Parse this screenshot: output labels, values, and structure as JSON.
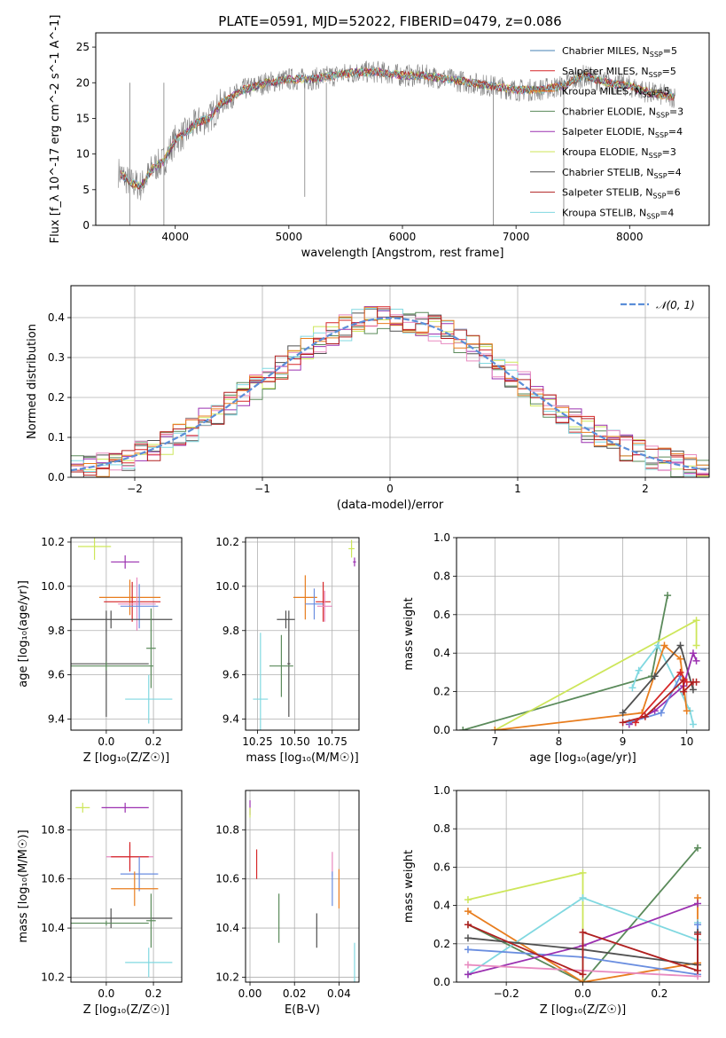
{
  "title": "PLATE=0591, MJD=52022, FIBERID=0479, z=0.086",
  "colors": {
    "chabrier_miles": "#4682b4",
    "salpeter_miles": "#d62728",
    "kroupa_miles": "#e87d1e",
    "chabrier_elodie": "#5a8a5a",
    "salpeter_elodie": "#9b30b0",
    "kroupa_elodie": "#cde65a",
    "chabrier_stelib": "#505050",
    "salpeter_stelib": "#b02020",
    "kroupa_stelib": "#80d8e0",
    "pink": "#e88ac0",
    "blue": "#6a8ee0",
    "data_gray": "#7f7f7f",
    "normal_curve": "#5b8ed8",
    "grid": "#b0b0b0"
  },
  "chart_data": [
    {
      "id": "spectrum",
      "type": "line",
      "title": "PLATE=0591, MJD=52022, FIBERID=0479, z=0.086",
      "xlabel": "wavelength [Angstrom, rest frame]",
      "ylabel": "Flux [f_λ 10^-17 erg cm^-2 s^-1 A^-1]",
      "xlim": [
        3300,
        8700
      ],
      "ylim": [
        0,
        27
      ],
      "xticks": [
        "4000",
        "5000",
        "6000",
        "7000",
        "8000"
      ],
      "yticks": [
        "0",
        "5",
        "10",
        "15",
        "20",
        "25"
      ],
      "legend_position": "right",
      "legend": [
        {
          "name": "Chabrier MILES, N_SSP=5",
          "text": "Chabrier MILES, N",
          "sub": "SSP",
          "tail": "=5",
          "color": "chabrier_miles"
        },
        {
          "name": "Salpeter MILES, N_SSP=5",
          "text": "Salpeter MILES, N",
          "sub": "SSP",
          "tail": "=5",
          "color": "salpeter_miles"
        },
        {
          "name": "Kroupa MILES, N_SSP=5",
          "text": "Kroupa MILES, N",
          "sub": "SSP",
          "tail": "=5",
          "color": "kroupa_miles"
        },
        {
          "name": "Chabrier ELODIE, N_SSP=3",
          "text": "Chabrier ELODIE, N",
          "sub": "SSP",
          "tail": "=3",
          "color": "chabrier_elodie"
        },
        {
          "name": "Salpeter ELODIE, N_SSP=4",
          "text": "Salpeter ELODIE, N",
          "sub": "SSP",
          "tail": "=4",
          "color": "salpeter_elodie"
        },
        {
          "name": "Kroupa ELODIE, N_SSP=3",
          "text": "Kroupa ELODIE, N",
          "sub": "SSP",
          "tail": "=3",
          "color": "kroupa_elodie"
        },
        {
          "name": "Chabrier STELIB, N_SSP=4",
          "text": "Chabrier STELIB, N",
          "sub": "SSP",
          "tail": "=4",
          "color": "chabrier_stelib"
        },
        {
          "name": "Salpeter STELIB, N_SSP=6",
          "text": "Salpeter STELIB, N",
          "sub": "SSP",
          "tail": "=6",
          "color": "salpeter_stelib"
        },
        {
          "name": "Kroupa STELIB, N_SSP=4",
          "text": "Kroupa STELIB, N",
          "sub": "SSP",
          "tail": "=4",
          "color": "kroupa_stelib"
        }
      ],
      "continuum_knots": [
        [
          3500,
          7.5
        ],
        [
          3600,
          6
        ],
        [
          3700,
          5.5
        ],
        [
          3800,
          8
        ],
        [
          3900,
          9
        ],
        [
          4000,
          12
        ],
        [
          4100,
          13
        ],
        [
          4200,
          14.5
        ],
        [
          4300,
          15
        ],
        [
          4400,
          17
        ],
        [
          4500,
          18
        ],
        [
          4600,
          19
        ],
        [
          4800,
          20
        ],
        [
          5000,
          20.5
        ],
        [
          5200,
          20.5
        ],
        [
          5400,
          21
        ],
        [
          5600,
          21.5
        ],
        [
          5800,
          21.5
        ],
        [
          6000,
          21
        ],
        [
          6200,
          21
        ],
        [
          6400,
          20.5
        ],
        [
          6600,
          20
        ],
        [
          6800,
          19.5
        ],
        [
          7000,
          19
        ],
        [
          7200,
          19
        ],
        [
          7400,
          19.5
        ],
        [
          7600,
          21
        ],
        [
          7800,
          20
        ],
        [
          8000,
          19.5
        ],
        [
          8200,
          18.5
        ],
        [
          8400,
          18
        ]
      ]
    },
    {
      "id": "residuals",
      "type": "histogram",
      "xlabel": "(data-model)/error",
      "ylabel": "Normed distribution",
      "xlim": [
        -2.5,
        2.5
      ],
      "ylim": [
        0,
        0.48
      ],
      "xticks": [
        "−2",
        "−1",
        "0",
        "1",
        "2"
      ],
      "yticks": [
        "0.0",
        "0.1",
        "0.2",
        "0.3",
        "0.4"
      ],
      "legend": "𝒩(0, 1)",
      "legend_position": "top-right"
    },
    {
      "id": "age_vs_Z",
      "type": "scatter",
      "xlabel": "Z [log₁₀(Z/Z☉)]",
      "ylabel": "age  [log₁₀(age/yr)]",
      "xlim": [
        -0.15,
        0.32
      ],
      "ylim": [
        9.35,
        10.22
      ],
      "xticks": [
        "0.0",
        "0.2"
      ],
      "yticks": [
        "9.4",
        "9.6",
        "9.8",
        "10.0",
        "10.2"
      ],
      "points": [
        {
          "x": -0.05,
          "y": 10.18,
          "ex": 0.07,
          "ey": 0.06,
          "color": "kroupa_elodie"
        },
        {
          "x": 0.08,
          "y": 10.11,
          "ex": 0.06,
          "ey": 0.03,
          "color": "salpeter_elodie"
        },
        {
          "x": 0.1,
          "y": 9.95,
          "ex": 0.13,
          "ey": 0.08,
          "color": "kroupa_miles"
        },
        {
          "x": 0.11,
          "y": 9.93,
          "ex": 0.12,
          "ey": 0.09,
          "color": "salpeter_miles"
        },
        {
          "x": 0.13,
          "y": 9.92,
          "ex": 0.08,
          "ey": 0.12,
          "color": "pink"
        },
        {
          "x": 0.14,
          "y": 9.91,
          "ex": 0.08,
          "ey": 0.1,
          "color": "blue"
        },
        {
          "x": 0.02,
          "y": 9.85,
          "ex": 0.26,
          "ey": 0.04,
          "color": "chabrier_stelib"
        },
        {
          "x": 0.0,
          "y": 9.65,
          "ex": 0.18,
          "ey": 0.24,
          "color": "chabrier_stelib"
        },
        {
          "x": 0.19,
          "y": 9.72,
          "ex": 0.02,
          "ey": 0.18,
          "color": "chabrier_elodie"
        },
        {
          "x": 0.0,
          "y": 9.64,
          "ex": 0.2,
          "ey": 0.02,
          "color": "chabrier_elodie"
        },
        {
          "x": 0.18,
          "y": 9.49,
          "ex": 0.1,
          "ey": 0.11,
          "color": "kroupa_stelib"
        }
      ]
    },
    {
      "id": "age_vs_mass",
      "type": "scatter",
      "xlabel": "mass [log₁₀(M/M☉)]",
      "ylabel": "",
      "xlim": [
        10.17,
        10.93
      ],
      "ylim": [
        9.35,
        10.22
      ],
      "xticks": [
        "10.25",
        "10.50",
        "10.75"
      ],
      "yticks": [
        "9.4",
        "9.6",
        "9.8",
        "10.0",
        "10.2"
      ],
      "points": [
        {
          "x": 10.88,
          "y": 10.17,
          "ex": 0.02,
          "ey": 0.04,
          "color": "kroupa_elodie"
        },
        {
          "x": 10.9,
          "y": 10.11,
          "ex": 0.01,
          "ey": 0.02,
          "color": "salpeter_elodie"
        },
        {
          "x": 10.57,
          "y": 9.95,
          "ex": 0.08,
          "ey": 0.1,
          "color": "kroupa_miles"
        },
        {
          "x": 10.69,
          "y": 9.93,
          "ex": 0.05,
          "ey": 0.09,
          "color": "salpeter_miles"
        },
        {
          "x": 10.7,
          "y": 9.91,
          "ex": 0.05,
          "ey": 0.07,
          "color": "pink"
        },
        {
          "x": 10.63,
          "y": 9.92,
          "ex": 0.06,
          "ey": 0.07,
          "color": "blue"
        },
        {
          "x": 10.44,
          "y": 9.85,
          "ex": 0.06,
          "ey": 0.04,
          "color": "chabrier_stelib"
        },
        {
          "x": 10.46,
          "y": 9.65,
          "ex": 0.01,
          "ey": 0.24,
          "color": "chabrier_stelib"
        },
        {
          "x": 10.41,
          "y": 9.64,
          "ex": 0.08,
          "ey": 0.14,
          "color": "chabrier_elodie"
        },
        {
          "x": 10.27,
          "y": 9.49,
          "ex": 0.05,
          "ey": 0.3,
          "color": "kroupa_stelib"
        }
      ]
    },
    {
      "id": "weight_vs_age",
      "type": "line",
      "xlabel": "age  [log₁₀(age/yr)]",
      "ylabel": "mass weight",
      "xlim": [
        6.4,
        10.35
      ],
      "ylim": [
        0,
        1.0
      ],
      "xticks": [
        "7",
        "8",
        "9",
        "10"
      ],
      "yticks": [
        "0.0",
        "0.2",
        "0.4",
        "0.6",
        "0.8",
        "1.0"
      ],
      "series": [
        {
          "color": "chabrier_elodie",
          "x": [
            6.5,
            9.45,
            9.7
          ],
          "y": [
            0.0,
            0.28,
            0.7
          ]
        },
        {
          "color": "kroupa_elodie",
          "x": [
            7.0,
            10.15,
            10.15
          ],
          "y": [
            0.0,
            0.57,
            0.44
          ]
        },
        {
          "color": "kroupa_stelib",
          "x": [
            9.15,
            9.25,
            9.55,
            10.05,
            10.1
          ],
          "y": [
            0.22,
            0.31,
            0.44,
            0.1,
            0.03
          ]
        },
        {
          "color": "kroupa_miles",
          "x": [
            7.0,
            9.3,
            9.65,
            9.9,
            10.0
          ],
          "y": [
            0.0,
            0.09,
            0.44,
            0.37,
            0.1
          ]
        },
        {
          "color": "chabrier_stelib",
          "x": [
            9.0,
            9.5,
            9.9,
            10.1
          ],
          "y": [
            0.09,
            0.28,
            0.44,
            0.21
          ]
        },
        {
          "color": "salpeter_elodie",
          "x": [
            9.1,
            9.5,
            9.95,
            10.1,
            10.15
          ],
          "y": [
            0.03,
            0.1,
            0.23,
            0.4,
            0.36
          ]
        },
        {
          "color": "blue",
          "x": [
            9.1,
            9.6,
            9.9
          ],
          "y": [
            0.04,
            0.09,
            0.28
          ]
        },
        {
          "color": "salpeter_stelib",
          "x": [
            9.0,
            9.35,
            9.95,
            9.95,
            10.1,
            10.15
          ],
          "y": [
            0.04,
            0.07,
            0.26,
            0.2,
            0.25,
            0.25
          ]
        },
        {
          "color": "salpeter_miles",
          "x": [
            9.2,
            9.9,
            10.0
          ],
          "y": [
            0.04,
            0.3,
            0.25
          ]
        }
      ]
    },
    {
      "id": "mass_vs_Z",
      "type": "scatter",
      "xlabel": "Z [log₁₀(Z/Z☉)]",
      "ylabel": "mass [log₁₀(M/M☉)]",
      "xlim": [
        -0.15,
        0.32
      ],
      "ylim": [
        10.18,
        10.96
      ],
      "xticks": [
        "0.0",
        "0.2"
      ],
      "yticks": [
        "10.2",
        "10.4",
        "10.6",
        "10.8"
      ],
      "points": [
        {
          "x": -0.1,
          "y": 10.89,
          "ex": 0.03,
          "ey": 0.02,
          "color": "kroupa_elodie"
        },
        {
          "x": 0.08,
          "y": 10.89,
          "ex": 0.1,
          "ey": 0.02,
          "color": "salpeter_elodie"
        },
        {
          "x": 0.1,
          "y": 10.69,
          "ex": 0.1,
          "ey": 0.05,
          "color": "pink"
        },
        {
          "x": 0.1,
          "y": 10.69,
          "ex": 0.08,
          "ey": 0.06,
          "color": "salpeter_miles"
        },
        {
          "x": 0.14,
          "y": 10.62,
          "ex": 0.08,
          "ey": 0.07,
          "color": "blue"
        },
        {
          "x": 0.12,
          "y": 10.56,
          "ex": 0.1,
          "ey": 0.07,
          "color": "kroupa_miles"
        },
        {
          "x": 0.02,
          "y": 10.44,
          "ex": 0.26,
          "ey": 0.04,
          "color": "chabrier_stelib"
        },
        {
          "x": 0.19,
          "y": 10.43,
          "ex": 0.02,
          "ey": 0.11,
          "color": "chabrier_elodie"
        },
        {
          "x": 0.0,
          "y": 10.42,
          "ex": 0.18,
          "ey": 0.01,
          "color": "chabrier_elodie"
        },
        {
          "x": 0.18,
          "y": 10.26,
          "ex": 0.1,
          "ey": 0.06,
          "color": "kroupa_stelib"
        }
      ]
    },
    {
      "id": "mass_vs_EBV",
      "type": "scatter",
      "xlabel": "E(B-V)",
      "ylabel": "",
      "xlim": [
        -0.002,
        0.049
      ],
      "ylim": [
        10.18,
        10.96
      ],
      "xticks": [
        "0.00",
        "0.02",
        "0.04"
      ],
      "yticks": [
        "10.2",
        "10.4",
        "10.6",
        "10.8"
      ],
      "points": [
        {
          "x": 0.0,
          "y": 10.89,
          "ex": 0,
          "ey": 0.03,
          "color": "salpeter_elodie"
        },
        {
          "x": 0.0,
          "y": 10.87,
          "ex": 0,
          "ey": 0.02,
          "color": "kroupa_elodie"
        },
        {
          "x": 0.003,
          "y": 10.66,
          "ex": 0,
          "ey": 0.06,
          "color": "salpeter_miles"
        },
        {
          "x": 0.013,
          "y": 10.44,
          "ex": 0,
          "ey": 0.1,
          "color": "chabrier_elodie"
        },
        {
          "x": 0.03,
          "y": 10.39,
          "ex": 0,
          "ey": 0.07,
          "color": "chabrier_stelib"
        },
        {
          "x": 0.037,
          "y": 10.66,
          "ex": 0,
          "ey": 0.05,
          "color": "pink"
        },
        {
          "x": 0.037,
          "y": 10.56,
          "ex": 0,
          "ey": 0.07,
          "color": "blue"
        },
        {
          "x": 0.04,
          "y": 10.56,
          "ex": 0,
          "ey": 0.08,
          "color": "kroupa_miles"
        },
        {
          "x": 0.047,
          "y": 10.26,
          "ex": 0,
          "ey": 0.08,
          "color": "kroupa_stelib"
        }
      ]
    },
    {
      "id": "weight_vs_Z",
      "type": "line",
      "xlabel": "Z [log₁₀(Z/Z☉)]",
      "ylabel": "mass weight",
      "xlim": [
        -0.33,
        0.33
      ],
      "ylim": [
        0,
        1.0
      ],
      "xticks": [
        "−0.2",
        "0.0",
        "0.2"
      ],
      "yticks": [
        "0.0",
        "0.2",
        "0.4",
        "0.6",
        "0.8",
        "1.0"
      ],
      "series": [
        {
          "color": "kroupa_elodie",
          "x": [
            -0.3,
            0.0,
            0.0
          ],
          "y": [
            0.43,
            0.57,
            0.0
          ]
        },
        {
          "color": "chabrier_elodie",
          "x": [
            -0.3,
            0.0,
            0.3
          ],
          "y": [
            0.3,
            0.0,
            0.7
          ]
        },
        {
          "color": "kroupa_miles",
          "x": [
            -0.3,
            0.0,
            0.3,
            0.3
          ],
          "y": [
            0.37,
            0.0,
            0.1,
            0.44
          ]
        },
        {
          "color": "kroupa_stelib",
          "x": [
            -0.3,
            0.0,
            0.3,
            0.3
          ],
          "y": [
            0.04,
            0.44,
            0.22,
            0.31
          ]
        },
        {
          "color": "blue",
          "x": [
            -0.3,
            0.0,
            0.3,
            0.3
          ],
          "y": [
            0.17,
            0.13,
            0.04,
            0.3
          ]
        },
        {
          "color": "salpeter_elodie",
          "x": [
            -0.3,
            0.0,
            0.3
          ],
          "y": [
            0.04,
            0.19,
            0.41
          ]
        },
        {
          "color": "chabrier_stelib",
          "x": [
            -0.3,
            0.0,
            0.3,
            0.3
          ],
          "y": [
            0.23,
            0.17,
            0.09,
            0.26
          ]
        },
        {
          "color": "pink",
          "x": [
            -0.3,
            0.0,
            0.3
          ],
          "y": [
            0.09,
            0.06,
            0.03
          ]
        },
        {
          "color": "salpeter_stelib",
          "x": [
            -0.3,
            0.0,
            0.0,
            0.3,
            0.3
          ],
          "y": [
            0.3,
            0.04,
            0.26,
            0.06,
            0.25
          ]
        }
      ]
    }
  ]
}
